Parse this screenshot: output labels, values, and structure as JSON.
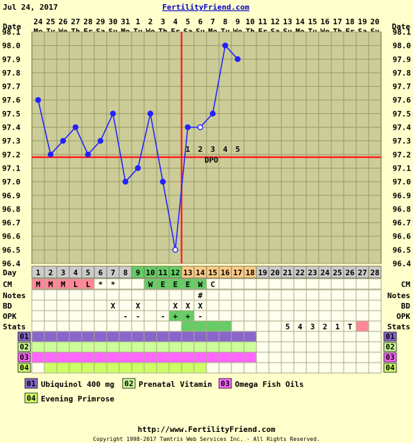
{
  "date_label": "Jul 24, 2017",
  "site_link": "FertilityFriend.com",
  "footer_url": "http://www.FertilityFriend.com",
  "copyright": "Copyright 1998-2017 Tamtris Web Services Inc. - All Rights Reserved.",
  "labels": {
    "date": "Date",
    "day": "Day",
    "cm": "CM",
    "notes": "Notes",
    "bd": "BD",
    "opk": "OPK",
    "stats": "Stats",
    "dpo": "DPO"
  },
  "colors": {
    "background": "#FFFFCC",
    "plot_bg": "#CCCC99",
    "grid": "#999966",
    "line": "#2222FF",
    "coverline": "#FF2222",
    "ovulation": "#FF2222",
    "fertile_green": "#66CC66",
    "luteal_orange": "#FFCC88",
    "cm_pink": "#FF8899",
    "stat_pink": "#FF8899",
    "med01": "#8866CC",
    "med02": "#CCFF99",
    "med03": "#FF66FF",
    "med04": "#CCFF66"
  },
  "chart_data": {
    "type": "line",
    "dates": [
      "24",
      "25",
      "26",
      "27",
      "28",
      "29",
      "30",
      "31",
      "1",
      "2",
      "3",
      "4",
      "5",
      "6",
      "7",
      "8",
      "9",
      "10",
      "11",
      "12",
      "13",
      "14",
      "15",
      "16",
      "17",
      "18",
      "19",
      "20"
    ],
    "weekdays": [
      "Mo",
      "Tu",
      "We",
      "Th",
      "Fr",
      "Sa",
      "Su",
      "Mo",
      "Tu",
      "We",
      "Th",
      "Fr",
      "Sa",
      "Su",
      "Mo",
      "Tu",
      "We",
      "Th",
      "Fr",
      "Sa",
      "Su",
      "Mo",
      "Tu",
      "We",
      "Th",
      "Fr",
      "Sa",
      "Su"
    ],
    "cycle_days": [
      "1",
      "2",
      "3",
      "4",
      "5",
      "6",
      "7",
      "8",
      "9",
      "10",
      "11",
      "12",
      "13",
      "14",
      "15",
      "16",
      "17",
      "18",
      "19",
      "20",
      "21",
      "22",
      "23",
      "24",
      "25",
      "26",
      "27",
      "28"
    ],
    "yticks": [
      "96.4",
      "96.5",
      "96.6",
      "96.7",
      "96.8",
      "96.9",
      "97.0",
      "97.1",
      "97.2",
      "97.3",
      "97.4",
      "97.5",
      "97.6",
      "97.7",
      "97.8",
      "97.9",
      "98.0",
      "98.1"
    ],
    "ylim": [
      96.4,
      98.1
    ],
    "temps": [
      97.6,
      97.2,
      97.3,
      97.4,
      97.2,
      97.3,
      97.5,
      97.0,
      97.1,
      97.5,
      97.0,
      96.5,
      97.4,
      97.4,
      97.5,
      98.0,
      97.9
    ],
    "open_points": [
      12,
      14
    ],
    "coverline": 97.18,
    "ovulation_day": 12,
    "dpo": [
      "1",
      "2",
      "3",
      "4",
      "5"
    ],
    "fertile_days": [
      9,
      10,
      11,
      12
    ],
    "luteal_days": [
      13,
      14,
      15,
      16,
      17,
      18
    ],
    "cm": [
      {
        "day": 1,
        "v": "M"
      },
      {
        "day": 2,
        "v": "M"
      },
      {
        "day": 3,
        "v": "M"
      },
      {
        "day": 4,
        "v": "L"
      },
      {
        "day": 5,
        "v": "L"
      },
      {
        "day": 6,
        "v": "*"
      },
      {
        "day": 7,
        "v": "*"
      },
      {
        "day": 10,
        "v": "W"
      },
      {
        "day": 11,
        "v": "E"
      },
      {
        "day": 12,
        "v": "E"
      },
      {
        "day": 13,
        "v": "E"
      },
      {
        "day": 14,
        "v": "W"
      },
      {
        "day": 15,
        "v": "C"
      }
    ],
    "notes": [
      {
        "day": 14,
        "v": "#"
      }
    ],
    "bd": [
      {
        "day": 7,
        "v": "X"
      },
      {
        "day": 9,
        "v": "X"
      },
      {
        "day": 12,
        "v": "X"
      },
      {
        "day": 13,
        "v": "X"
      },
      {
        "day": 14,
        "v": "X"
      }
    ],
    "opk": [
      {
        "day": 8,
        "v": "-"
      },
      {
        "day": 9,
        "v": "-"
      },
      {
        "day": 11,
        "v": "-"
      },
      {
        "day": 12,
        "v": "+"
      },
      {
        "day": 13,
        "v": "+"
      },
      {
        "day": 14,
        "v": "-"
      }
    ],
    "stats_green": [
      13,
      14,
      15,
      16
    ],
    "stats": [
      {
        "day": 21,
        "v": "5"
      },
      {
        "day": 22,
        "v": "4"
      },
      {
        "day": 23,
        "v": "3"
      },
      {
        "day": 24,
        "v": "2"
      },
      {
        "day": 25,
        "v": "1"
      },
      {
        "day": 26,
        "v": "T"
      }
    ],
    "stats_pink": [
      27
    ],
    "meds": [
      {
        "code": "01",
        "name": "Ubiquinol 400 mg",
        "start": 1,
        "end": 18
      },
      {
        "code": "02",
        "name": "Prenatal Vitamin",
        "start": 1,
        "end": 18
      },
      {
        "code": "03",
        "name": "Omega Fish Oils",
        "start": 1,
        "end": 18
      },
      {
        "code": "04",
        "name": "Evening Primrose",
        "start": 2,
        "end": 14
      }
    ]
  }
}
